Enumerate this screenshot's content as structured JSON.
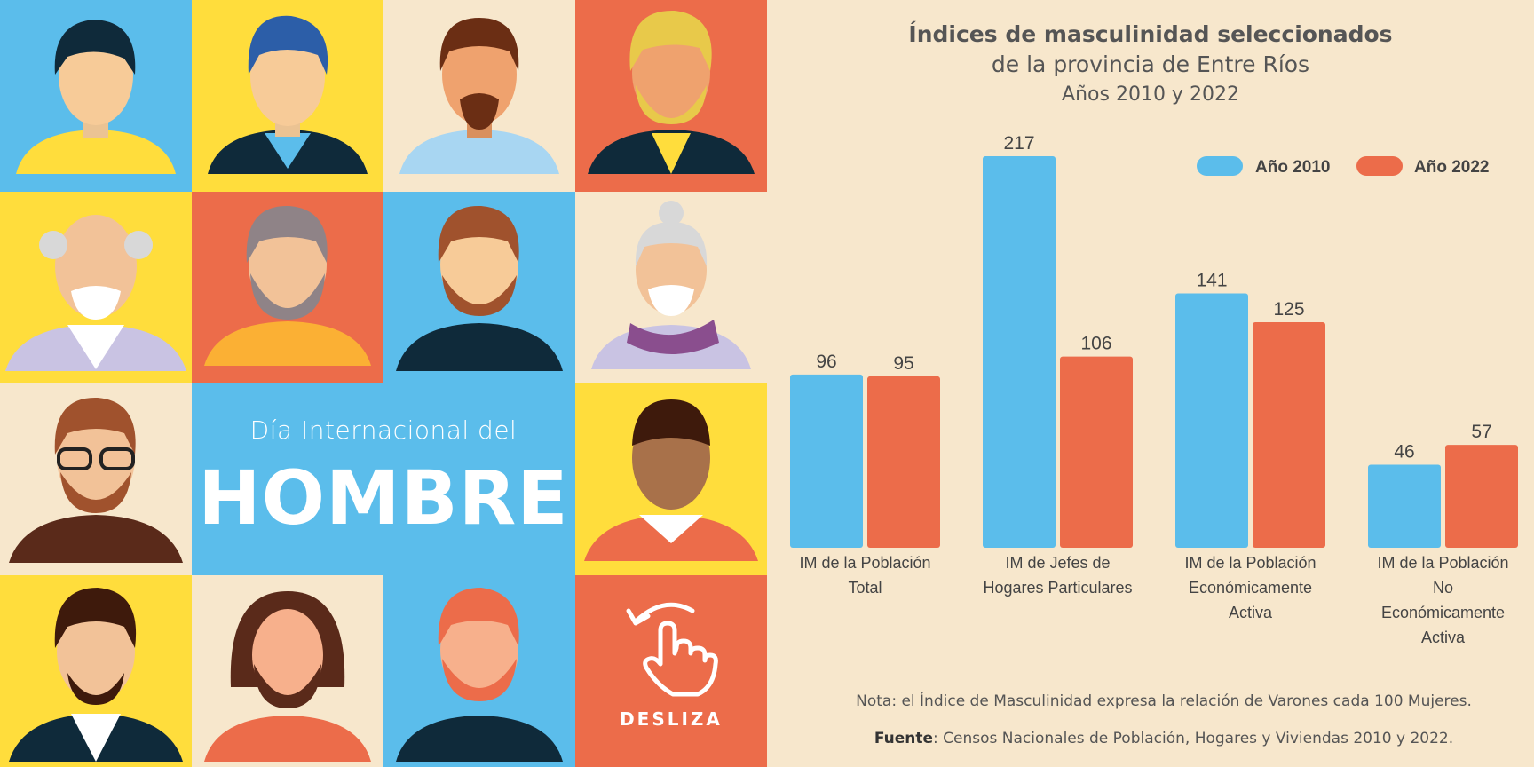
{
  "left_panel": {
    "day_label": "Día Internacional del",
    "day_title": "HOMBRE",
    "swipe_label": "DESLIZA",
    "swipe_icon": "swipe-hand-icon",
    "colors": {
      "blue": "#5BBDEB",
      "yellow": "#FFDD3C",
      "cream": "#F7E7CC",
      "orange": "#EC6C4A"
    }
  },
  "chart_data": {
    "type": "bar",
    "title": "Índices de masculinidad seleccionados",
    "subtitle": "de la provincia de Entre Ríos",
    "years_label": "Años 2010 y 2022",
    "categories": [
      [
        "IM de la Población",
        "Total"
      ],
      [
        "IM de Jefes de",
        "Hogares Particulares"
      ],
      [
        "IM de la Población",
        "Económicamente",
        "Activa"
      ],
      [
        "IM de la Población",
        "No",
        "Económicamente",
        "Activa"
      ]
    ],
    "series": [
      {
        "name": "Año 2010",
        "color": "#5BBDEB",
        "values": [
          96,
          217,
          141,
          46
        ]
      },
      {
        "name": "Año 2022",
        "color": "#EC6C4A",
        "values": [
          95,
          106,
          125,
          57
        ]
      }
    ],
    "legend": "top-right",
    "grid": false
  },
  "footer": {
    "note": "Nota: el Índice de Masculinidad expresa la relación de Varones cada 100 Mujeres.",
    "source_label": "Fuente",
    "source_text": ": Censos Nacionales de Población, Hogares y Viviendas 2010 y 2022."
  }
}
